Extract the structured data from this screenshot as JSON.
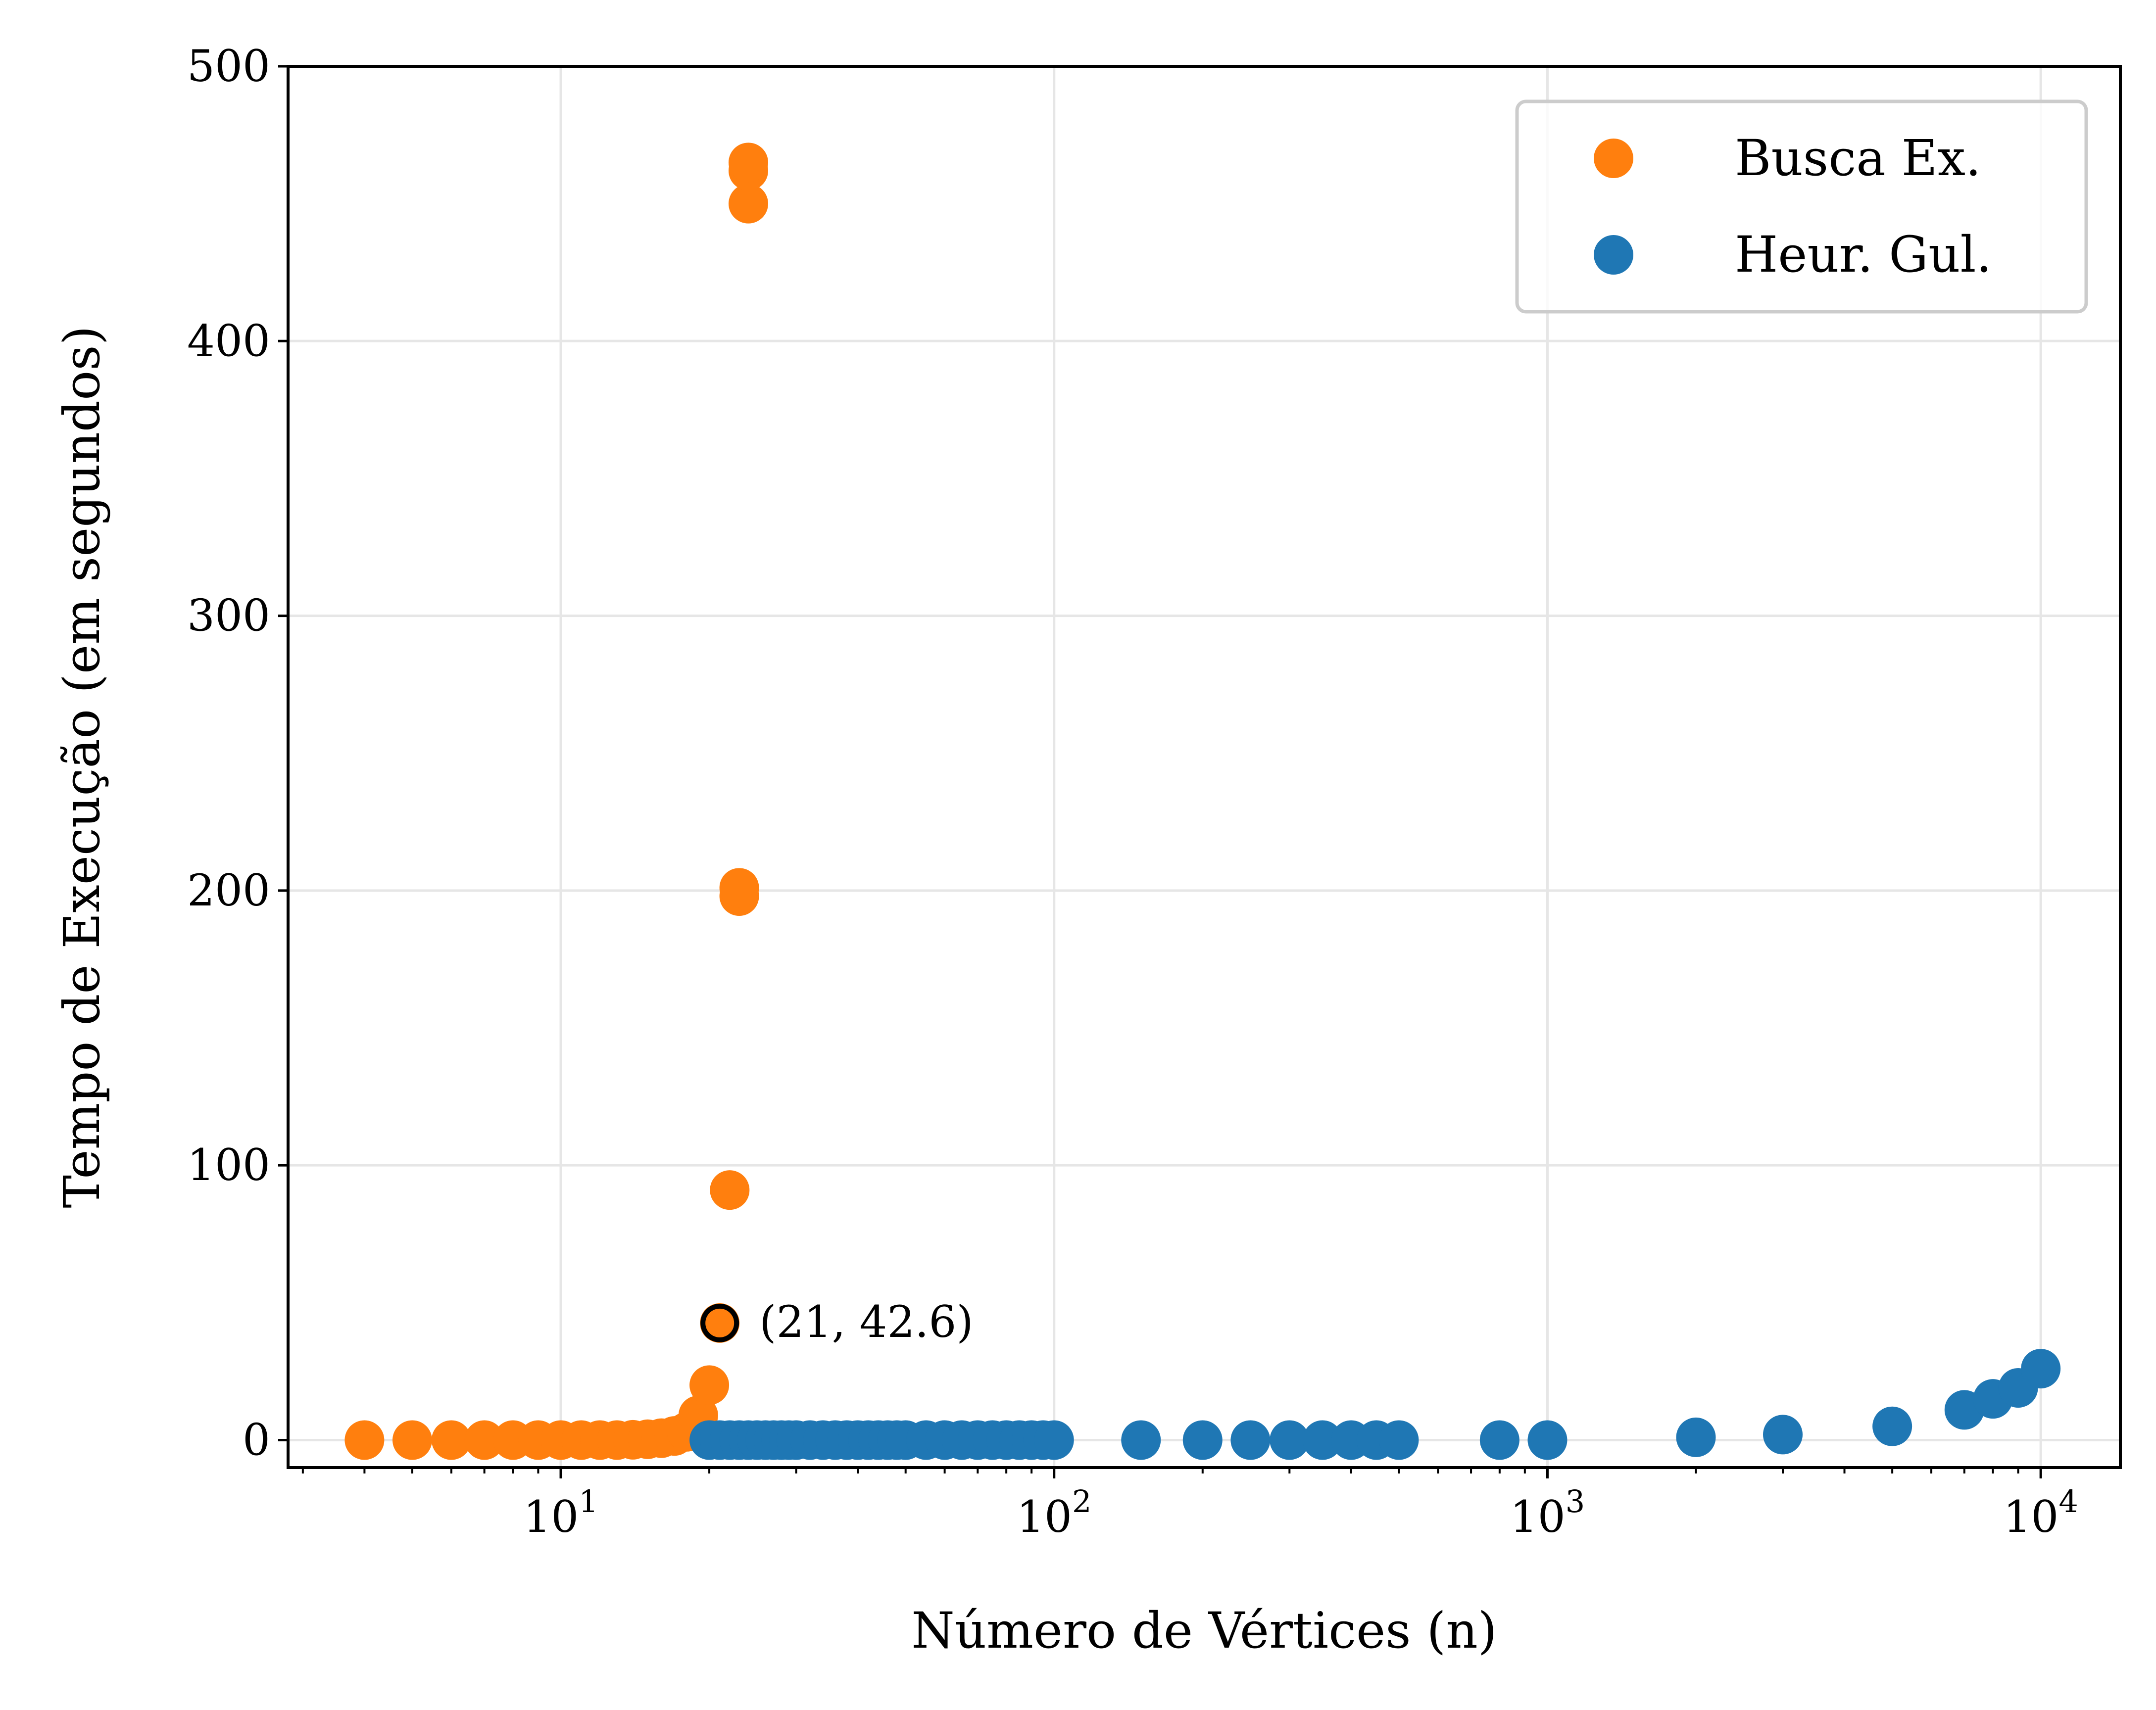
{
  "chart_data": {
    "type": "scatter",
    "title": "",
    "xlabel": "Número de Vértices (n)",
    "ylabel": "Tempo de Execução (em segundos)",
    "xscale": "log",
    "xlim": [
      2.8,
      14500
    ],
    "ylim": [
      -10,
      500
    ],
    "x_ticks": [
      10,
      100,
      1000,
      10000
    ],
    "x_tick_labels": [
      {
        "base": "10",
        "exp": "1"
      },
      {
        "base": "10",
        "exp": "2"
      },
      {
        "base": "10",
        "exp": "3"
      },
      {
        "base": "10",
        "exp": "4"
      }
    ],
    "y_ticks": [
      0,
      100,
      200,
      300,
      400,
      500
    ],
    "y_tick_labels": [
      "0",
      "100",
      "200",
      "300",
      "400",
      "500"
    ],
    "grid": true,
    "legend_position": "top-right",
    "series": [
      {
        "name": "Busca Ex.",
        "color": "#ff7f0e",
        "x": [
          4,
          5,
          6,
          7,
          8,
          9,
          10,
          11,
          12,
          13,
          14,
          15,
          16,
          17,
          18,
          19,
          20,
          21,
          22,
          23,
          23,
          24,
          24,
          24
        ],
        "y": [
          0,
          0,
          0,
          0,
          0,
          0,
          0,
          0,
          0,
          0,
          0.1,
          0.3,
          0.7,
          1.5,
          3,
          9,
          20,
          42.6,
          91,
          198,
          201,
          450,
          462,
          465
        ]
      },
      {
        "name": "Heur. Gul.",
        "color": "#1f77b4",
        "x": [
          20,
          21,
          22,
          23,
          24,
          25,
          26,
          27,
          28,
          29,
          30,
          32,
          34,
          36,
          38,
          40,
          42,
          44,
          46,
          48,
          50,
          55,
          60,
          65,
          70,
          75,
          80,
          85,
          90,
          95,
          100,
          150,
          200,
          250,
          300,
          350,
          400,
          450,
          500,
          800,
          1000,
          2000,
          3000,
          5000,
          7000,
          8000,
          9000,
          10000
        ],
        "y": [
          0,
          0,
          0,
          0,
          0,
          0,
          0,
          0,
          0,
          0,
          0,
          0,
          0,
          0,
          0,
          0,
          0,
          0,
          0,
          0,
          0,
          0,
          0,
          0,
          0,
          0,
          0,
          0,
          0,
          0,
          0,
          0,
          0,
          0,
          0,
          0,
          0,
          0,
          0,
          0,
          0,
          1,
          2,
          5,
          11,
          15,
          19,
          26
        ]
      }
    ],
    "annotation": {
      "text": "(21, 42.6)",
      "x": 21,
      "y": 42.6
    }
  }
}
